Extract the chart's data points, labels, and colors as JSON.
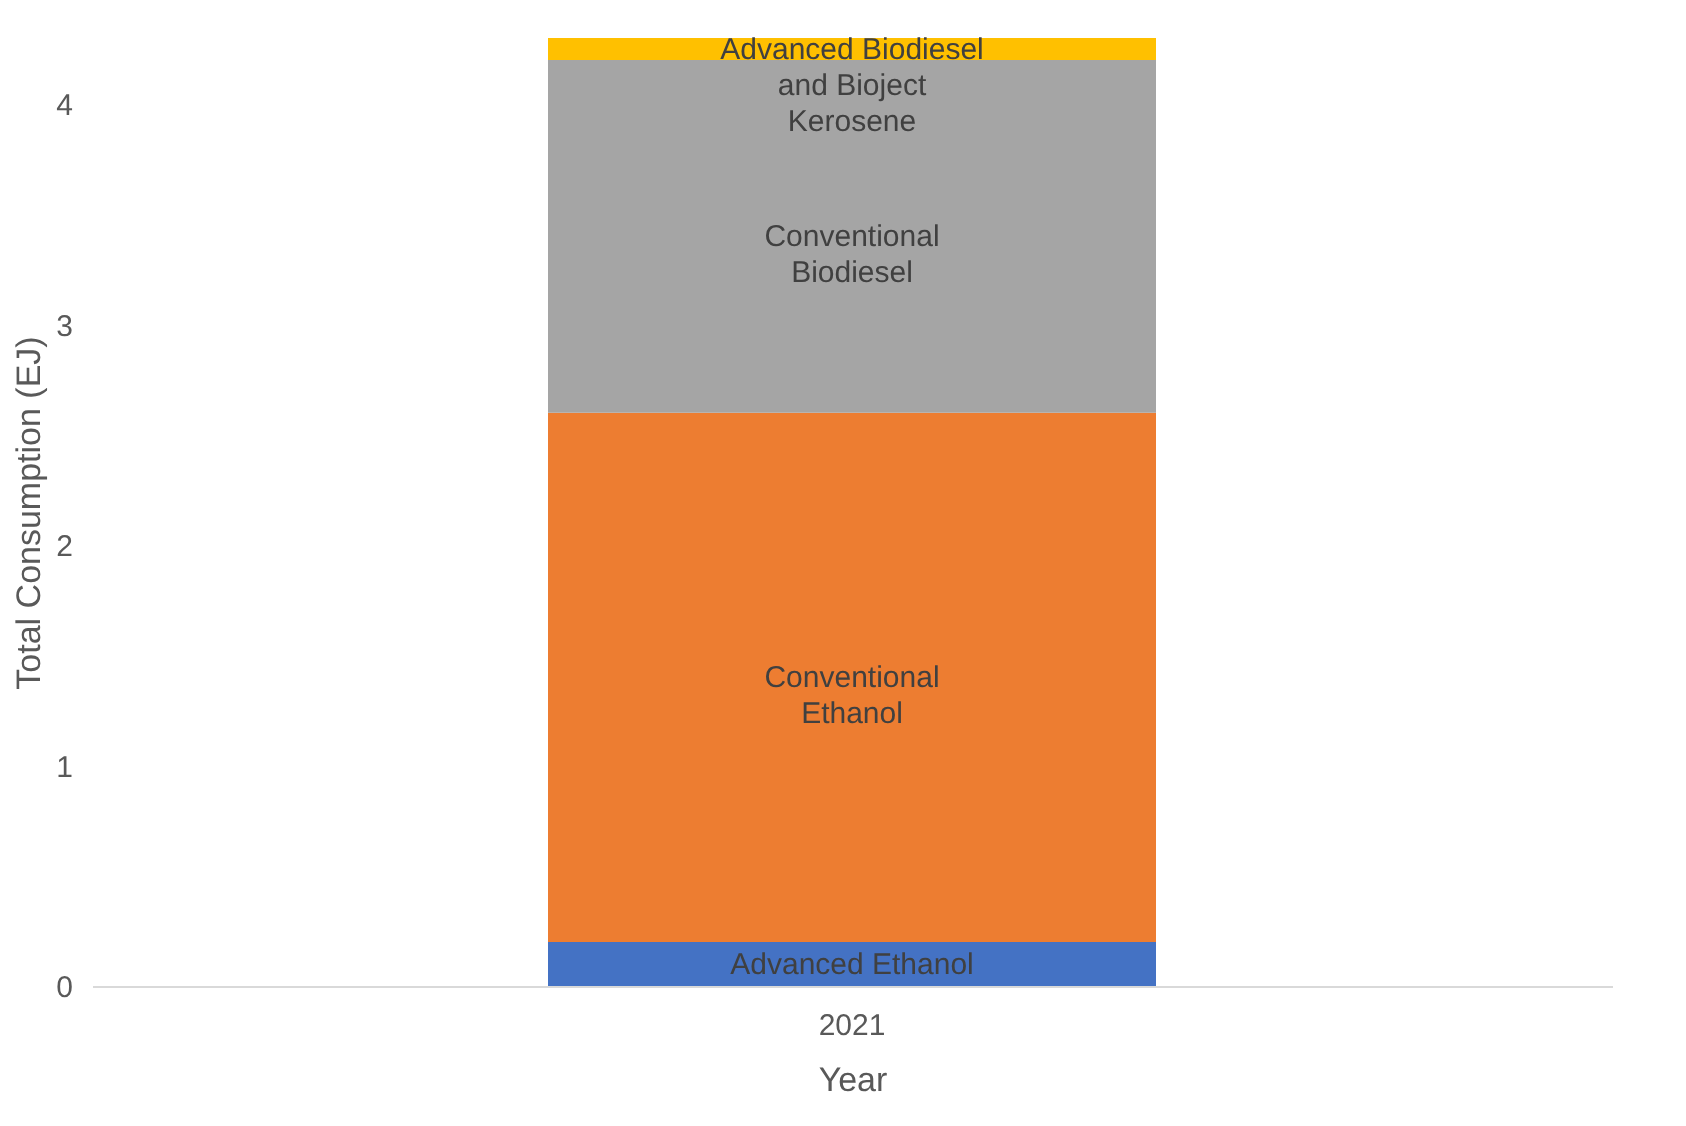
{
  "chart_data": {
    "type": "bar",
    "stacked": true,
    "categories": [
      "2021"
    ],
    "xlabel": "Year",
    "ylabel": "Total Consumption (EJ)",
    "series": [
      {
        "name": "Advanced Ethanol",
        "color": "#4472c4",
        "values": [
          0.2
        ]
      },
      {
        "name": "Conventional Ethanol",
        "color": "#ed7d31",
        "values": [
          2.4
        ]
      },
      {
        "name": "Conventional Biodiesel",
        "color": "#a5a5a5",
        "values": [
          1.6
        ]
      },
      {
        "name": "Advanced Biodiesel and Bioject Kerosene",
        "color": "#ffc000",
        "values": [
          0.1
        ]
      }
    ],
    "ylim": [
      0,
      4.3
    ],
    "yticks": [
      0,
      1,
      2,
      3,
      4
    ],
    "grid": false
  }
}
